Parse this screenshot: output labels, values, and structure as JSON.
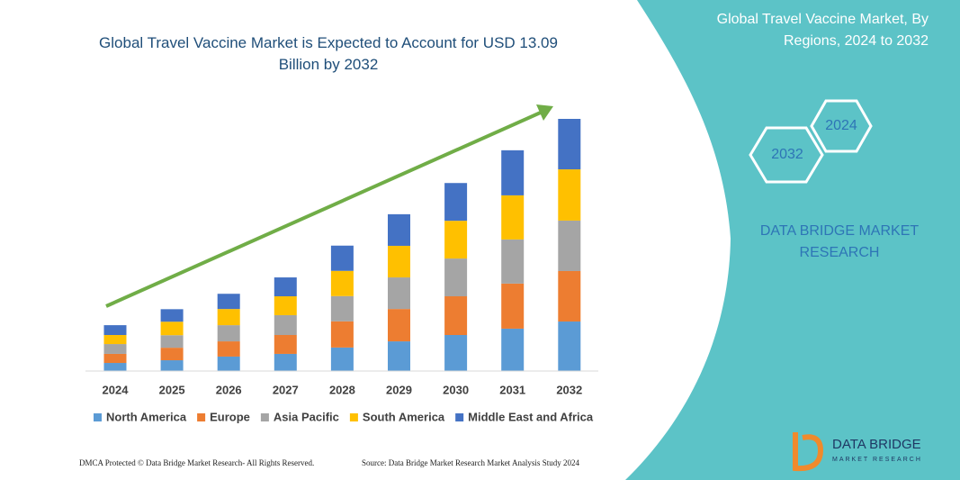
{
  "chart_data": {
    "type": "stacked_bar",
    "title": "Global Travel Vaccine Market is Expected to Account for USD 13.09 Billion by 2032",
    "categories": [
      "2024",
      "2025",
      "2026",
      "2027",
      "2028",
      "2029",
      "2030",
      "2031",
      "2032"
    ],
    "series": [
      {
        "name": "North America",
        "color": "#5b9bd5",
        "values": [
          0.42,
          0.56,
          0.75,
          0.89,
          1.22,
          1.54,
          1.87,
          2.2,
          2.57
        ]
      },
      {
        "name": "Europe",
        "color": "#ed7d31",
        "values": [
          0.47,
          0.65,
          0.79,
          0.98,
          1.36,
          1.68,
          2.01,
          2.34,
          2.62
        ]
      },
      {
        "name": "Asia Pacific",
        "color": "#a5a5a5",
        "values": [
          0.51,
          0.65,
          0.84,
          1.03,
          1.31,
          1.64,
          1.96,
          2.29,
          2.62
        ]
      },
      {
        "name": "South America",
        "color": "#ffc000",
        "values": [
          0.47,
          0.7,
          0.84,
          0.98,
          1.31,
          1.64,
          1.96,
          2.29,
          2.66
        ]
      },
      {
        "name": "Middle East and Africa",
        "color": "#4472c4",
        "values": [
          0.51,
          0.65,
          0.79,
          0.98,
          1.31,
          1.64,
          1.96,
          2.34,
          2.62
        ]
      }
    ],
    "ylim": [
      0,
      13.09
    ]
  },
  "panel": {
    "title_line1": "Global Travel Vaccine Market, By",
    "title_line2": "Regions, 2024 to 2032",
    "hex_top": "2024",
    "hex_bottom": "2032",
    "brand_line1": "DATA BRIDGE MARKET",
    "brand_line2": "RESEARCH",
    "logo_line1": "DATA BRIDGE",
    "logo_line2": "MARKET RESEARCH"
  },
  "footer": {
    "left": "DMCA Protected © Data Bridge Market Research- All Rights Reserved.",
    "right": "Source: Data Bridge Market Research  Market Analysis Study 2024"
  }
}
